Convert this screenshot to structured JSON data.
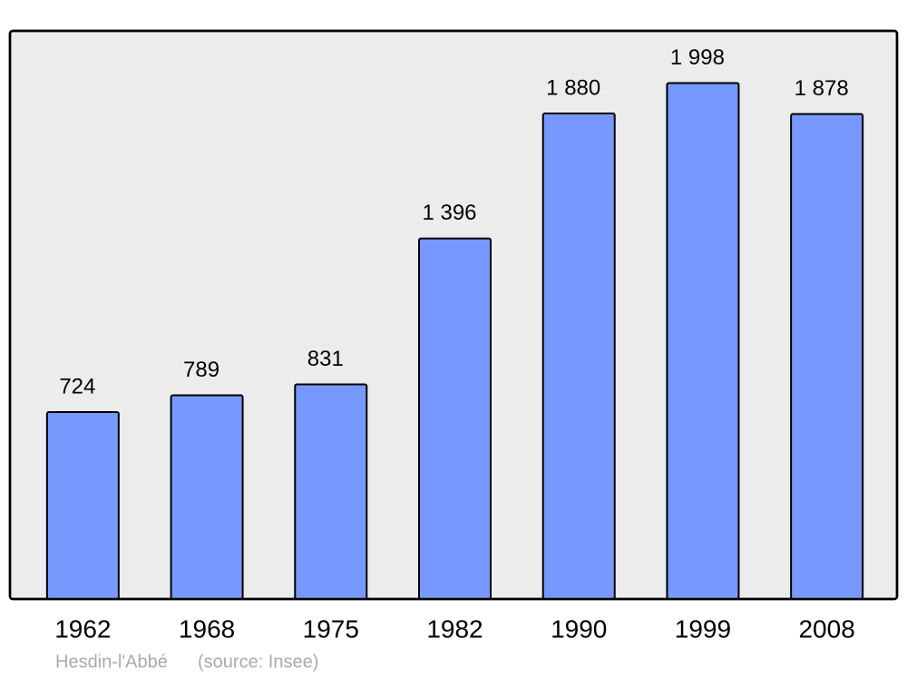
{
  "chart_data": {
    "type": "bar",
    "categories": [
      "1962",
      "1968",
      "1975",
      "1982",
      "1990",
      "1999",
      "2008"
    ],
    "values": [
      724,
      789,
      831,
      1396,
      1880,
      1998,
      1878
    ],
    "value_labels": [
      "724",
      "789",
      "831",
      "1 396",
      "1 880",
      "1 998",
      "1 878"
    ],
    "color": "#7799ff",
    "ylim": [
      0,
      2200
    ],
    "footer": "Hesdin-l'Abbé",
    "source": "(source: Insee)"
  }
}
